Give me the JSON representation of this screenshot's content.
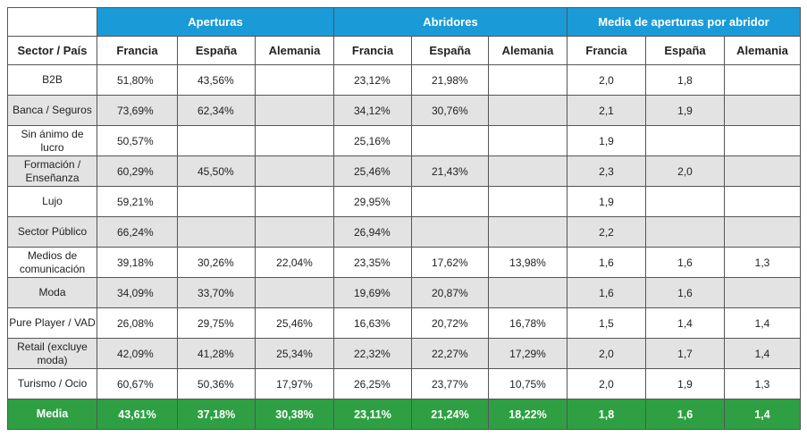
{
  "groups": {
    "aperturas": "Aperturas",
    "abridores": "Abridores",
    "media": "Media de aperturas por abridor"
  },
  "header": {
    "sector": "Sector / País",
    "c1": "Francia",
    "c2": "España",
    "c3": "Alemania",
    "c4": "Francia",
    "c5": "España",
    "c6": "Alemania",
    "c7": "Francia",
    "c8": "España",
    "c9": "Alemania"
  },
  "rows": [
    {
      "sector": "B2B",
      "ap_fr": "51,80%",
      "ap_es": "43,56%",
      "ap_de": "",
      "ab_fr": "23,12%",
      "ab_es": "21,98%",
      "ab_de": "",
      "me_fr": "2,0",
      "me_es": "1,8",
      "me_de": ""
    },
    {
      "sector": "Banca / Seguros",
      "ap_fr": "73,69%",
      "ap_es": "62,34%",
      "ap_de": "",
      "ab_fr": "34,12%",
      "ab_es": "30,76%",
      "ab_de": "",
      "me_fr": "2,1",
      "me_es": "1,9",
      "me_de": ""
    },
    {
      "sector": "Sin ánimo de lucro",
      "ap_fr": "50,57%",
      "ap_es": "",
      "ap_de": "",
      "ab_fr": "25,16%",
      "ab_es": "",
      "ab_de": "",
      "me_fr": "1,9",
      "me_es": "",
      "me_de": ""
    },
    {
      "sector": "Formación / Enseñanza",
      "ap_fr": "60,29%",
      "ap_es": "45,50%",
      "ap_de": "",
      "ab_fr": "25,46%",
      "ab_es": "21,43%",
      "ab_de": "",
      "me_fr": "2,3",
      "me_es": "2,0",
      "me_de": ""
    },
    {
      "sector": "Lujo",
      "ap_fr": "59,21%",
      "ap_es": "",
      "ap_de": "",
      "ab_fr": "29,95%",
      "ab_es": "",
      "ab_de": "",
      "me_fr": "1,9",
      "me_es": "",
      "me_de": ""
    },
    {
      "sector": "Sector Público",
      "ap_fr": "66,24%",
      "ap_es": "",
      "ap_de": "",
      "ab_fr": "26,94%",
      "ab_es": "",
      "ab_de": "",
      "me_fr": "2,2",
      "me_es": "",
      "me_de": ""
    },
    {
      "sector": "Medios de comunicación",
      "ap_fr": "39,18%",
      "ap_es": "30,26%",
      "ap_de": "22,04%",
      "ab_fr": "23,35%",
      "ab_es": "17,62%",
      "ab_de": "13,98%",
      "me_fr": "1,6",
      "me_es": "1,6",
      "me_de": "1,3"
    },
    {
      "sector": "Moda",
      "ap_fr": "34,09%",
      "ap_es": "33,70%",
      "ap_de": "",
      "ab_fr": "19,69%",
      "ab_es": "20,87%",
      "ab_de": "",
      "me_fr": "1,6",
      "me_es": "1,6",
      "me_de": ""
    },
    {
      "sector": "Pure Player / VAD",
      "ap_fr": "26,08%",
      "ap_es": "29,75%",
      "ap_de": "25,46%",
      "ab_fr": "16,63%",
      "ab_es": "20,72%",
      "ab_de": "16,78%",
      "me_fr": "1,5",
      "me_es": "1,4",
      "me_de": "1,4"
    },
    {
      "sector": "Retail (excluye moda)",
      "ap_fr": "42,09%",
      "ap_es": "41,28%",
      "ap_de": "25,34%",
      "ab_fr": "22,32%",
      "ab_es": "22,27%",
      "ab_de": "17,29%",
      "me_fr": "2,0",
      "me_es": "1,7",
      "me_de": "1,4"
    },
    {
      "sector": "Turismo / Ocio",
      "ap_fr": "60,67%",
      "ap_es": "50,36%",
      "ap_de": "17,97%",
      "ab_fr": "26,25%",
      "ab_es": "23,77%",
      "ab_de": "10,75%",
      "me_fr": "2,0",
      "me_es": "1,9",
      "me_de": "1,3"
    }
  ],
  "media": {
    "sector": "Media",
    "ap_fr": "43,61%",
    "ap_es": "37,18%",
    "ap_de": "30,38%",
    "ab_fr": "23,11%",
    "ab_es": "21,24%",
    "ab_de": "18,22%",
    "me_fr": "1,8",
    "me_es": "1,6",
    "me_de": "1,4"
  }
}
